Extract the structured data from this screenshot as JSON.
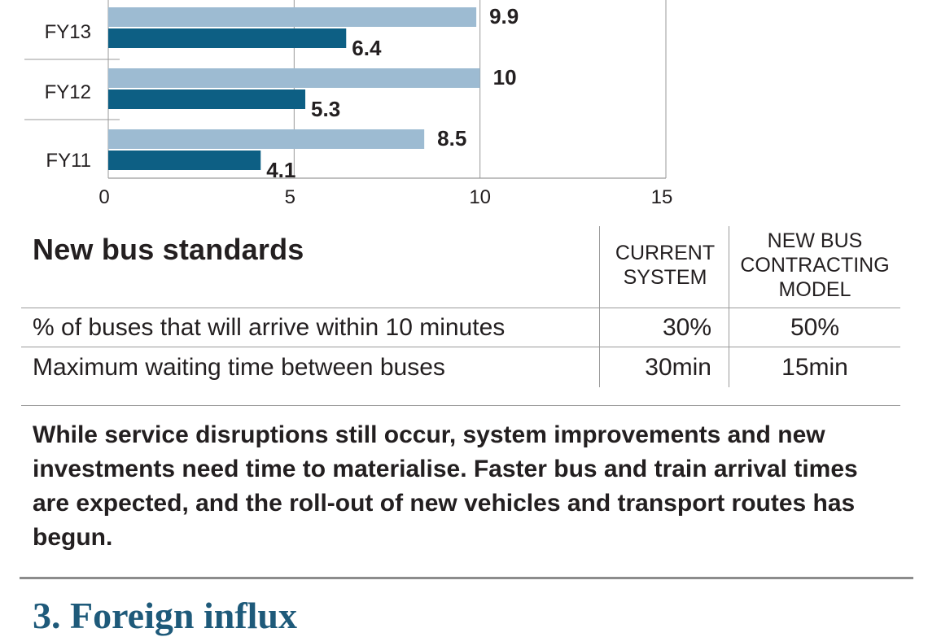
{
  "chart_data": {
    "type": "bar",
    "orientation": "horizontal",
    "categories": [
      "FY13",
      "FY12",
      "FY11"
    ],
    "series": [
      {
        "values": [
          9.9,
          10,
          8.5
        ],
        "color": "#9dbbd2"
      },
      {
        "values": [
          6.4,
          5.3,
          4.1
        ],
        "color": "#0d5f84"
      }
    ],
    "value_labels": [
      [
        "9.9",
        "10",
        "8.5"
      ],
      [
        "6.4",
        "5.3",
        "4.1"
      ]
    ],
    "xlim": [
      0,
      15
    ],
    "xticks": [
      0,
      5,
      10,
      15
    ],
    "xtick_labels": [
      "0",
      "5",
      "10",
      "15"
    ],
    "grid": "vertical"
  },
  "table": {
    "title": "New bus standards",
    "columns": [
      [
        "CURRENT",
        "SYSTEM"
      ],
      [
        "NEW BUS",
        "CONTRACTING",
        "MODEL"
      ]
    ],
    "rows": [
      {
        "label": "% of buses that will arrive within 10 minutes",
        "current": "30%",
        "new": "50%"
      },
      {
        "label": "Maximum waiting time between buses",
        "current": "30min",
        "new": "15min"
      }
    ]
  },
  "paragraph": "While service disruptions still occur, system improvements and new investments need time to materialise. Faster bus and train arrival times are expected, and the roll-out of new vehicles and transport routes has begun.",
  "next_section_heading": "3. Foreign influx"
}
